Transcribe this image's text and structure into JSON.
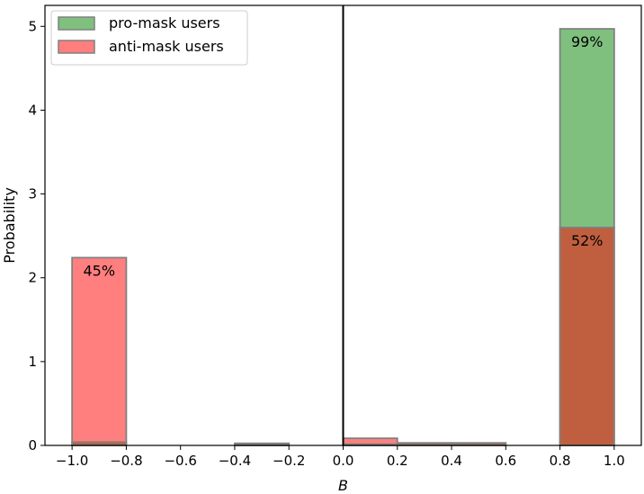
{
  "chart_data": {
    "type": "bar",
    "subtype": "histogram-overlay",
    "xlabel": "B",
    "ylabel": "Probability",
    "xlim": [
      -1.1,
      1.1
    ],
    "ylim": [
      0,
      5.25
    ],
    "xticks": [
      "−1.0",
      "−0.8",
      "−0.6",
      "−0.4",
      "−0.2",
      "0.0",
      "0.2",
      "0.4",
      "0.6",
      "0.8",
      "1.0"
    ],
    "xtick_values": [
      -1.0,
      -0.8,
      -0.6,
      -0.4,
      -0.2,
      0.0,
      0.2,
      0.4,
      0.6,
      0.8,
      1.0
    ],
    "yticks": [
      "0",
      "1",
      "2",
      "3",
      "4",
      "5"
    ],
    "ytick_values": [
      0,
      1,
      2,
      3,
      4,
      5
    ],
    "bin_edges": [
      -1.0,
      -0.8,
      -0.6,
      -0.4,
      -0.2,
      0.0,
      0.2,
      0.4,
      0.6,
      0.8,
      1.0
    ],
    "vline_x": 0.0,
    "legend_position": "top-left",
    "series": [
      {
        "name": "pro-mask users",
        "color": "#7fc07f",
        "edge_color": "#808080",
        "values": [
          0.04,
          0.0,
          0.0,
          0.025,
          0.0,
          0.015,
          0.025,
          0.025,
          0.0,
          4.97
        ]
      },
      {
        "name": "anti-mask users",
        "color": "#ff7f7f",
        "edge_color": "#808080",
        "values": [
          2.24,
          0.0,
          0.0,
          0.02,
          0.0,
          0.085,
          0.03,
          0.03,
          0.0,
          2.6
        ]
      }
    ],
    "overlap_color": "#c05f3f",
    "annotations": [
      {
        "text": "45%",
        "x": -0.9,
        "y": 2.24
      },
      {
        "text": "99%",
        "x": 0.9,
        "y": 4.97
      },
      {
        "text": "52%",
        "x": 0.9,
        "y": 2.6
      }
    ]
  }
}
